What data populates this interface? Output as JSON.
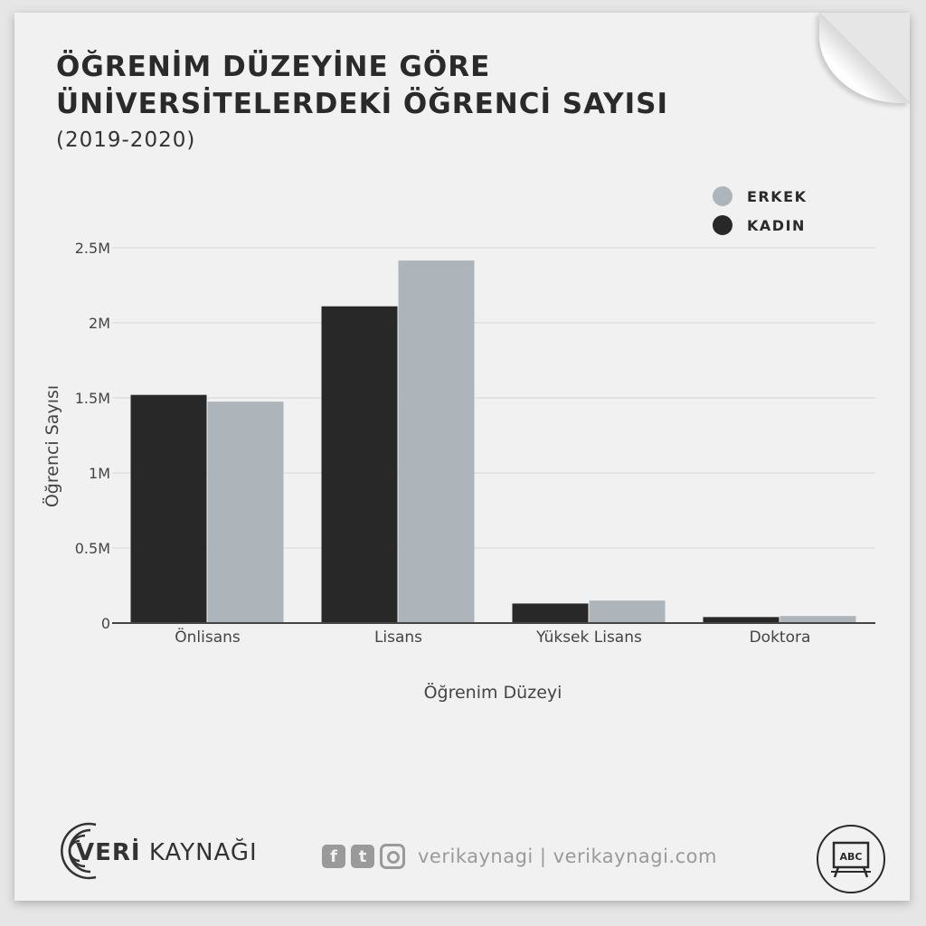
{
  "header": {
    "title_line1": "ÖĞRENİM DÜZEYİNE GÖRE",
    "title_line2": "ÜNİVERSİTELERDEKİ ÖĞRENCİ SAYISI",
    "subtitle": "(2019-2020)"
  },
  "legend": {
    "items": [
      {
        "label": "ERKEK",
        "color": "#adb5ba"
      },
      {
        "label": "KADIN",
        "color": "#282828"
      }
    ]
  },
  "chart_data": {
    "type": "bar",
    "categories": [
      "Önlisans",
      "Lisans",
      "Yüksek Lisans",
      "Doktora"
    ],
    "series": [
      {
        "name": "KADIN",
        "color": "#282828",
        "values": [
          1520000,
          2110000,
          130000,
          40000
        ]
      },
      {
        "name": "ERKEK",
        "color": "#adb5ba",
        "values": [
          1475000,
          2415000,
          150000,
          47000
        ]
      }
    ],
    "xlabel": "Öğrenim Düzeyi",
    "ylabel": "Öğrenci Sayısı",
    "ylim": [
      0,
      2500000
    ],
    "yticks": [
      {
        "value": 0,
        "label": "0"
      },
      {
        "value": 500000,
        "label": "0.5M"
      },
      {
        "value": 1000000,
        "label": "1M"
      },
      {
        "value": 1500000,
        "label": "1.5M"
      },
      {
        "value": 2000000,
        "label": "2M"
      },
      {
        "value": 2500000,
        "label": "2.5M"
      }
    ],
    "grid": true,
    "legend_position": "top-right"
  },
  "footer": {
    "brand_bold": "VERİ",
    "brand_rest": " KAYNAĞI",
    "facebook_glyph": "f",
    "twitter_glyph": "t",
    "social_text": "verikaynagi | verikaynagi.com",
    "badge_text": "ABC"
  }
}
